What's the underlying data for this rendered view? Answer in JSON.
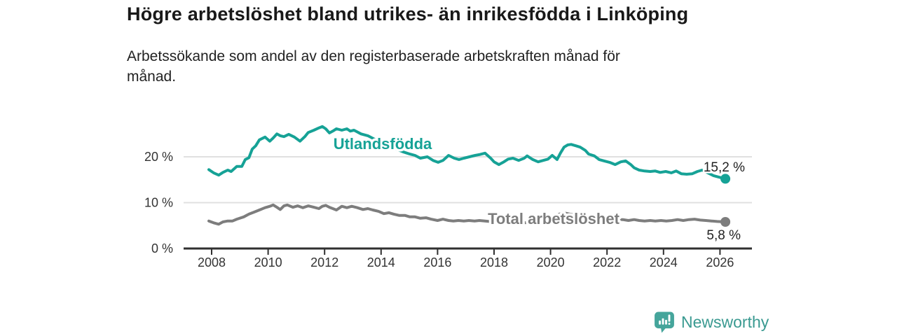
{
  "header": {
    "title": "Högre arbetslöshet bland utrikes- än inrikesfödda i Linköping",
    "subtitle": "Arbetssökande som andel av den registerbaserade arbetskraften månad för\nmånad."
  },
  "brand": {
    "name": "Newsworthy",
    "icon": "speech-bubble-bar-chart-exclamation",
    "color": "#3a9a91"
  },
  "colors": {
    "accent_teal": "#16a296",
    "line_gray": "#7d7d7d",
    "axis": "#303030",
    "gridline": "#e0e0e0",
    "tick_label": "#333333",
    "value_label": "#222222"
  },
  "chart_data": {
    "type": "line",
    "title": "Högre arbetslöshet bland utrikes- än inrikesfödda i Linköping",
    "subtitle": "Arbetssökande som andel av den registerbaserade arbetskraften månad för månad.",
    "unit": "%",
    "grid": "horizontal-only",
    "legend_position": "inline-labels",
    "xlim": [
      2007.8,
      2026.4
    ],
    "ylim": [
      0,
      28
    ],
    "xticks": [
      2008,
      2010,
      2012,
      2014,
      2016,
      2018,
      2020,
      2022,
      2024,
      2026
    ],
    "yticks": [
      {
        "v": 0,
        "label": "0 %"
      },
      {
        "v": 10,
        "label": "10 %"
      },
      {
        "v": 20,
        "label": "20 %"
      }
    ],
    "series": [
      {
        "name": "Utlandsfödda",
        "color": "#16a296",
        "end_label": "15,2 %",
        "end_value": 15.2,
        "points": [
          [
            2007.9,
            17.2
          ],
          [
            2008.07,
            16.5
          ],
          [
            2008.25,
            16.0
          ],
          [
            2008.4,
            16.6
          ],
          [
            2008.57,
            17.1
          ],
          [
            2008.69,
            16.8
          ],
          [
            2008.89,
            17.9
          ],
          [
            2009.07,
            17.9
          ],
          [
            2009.19,
            19.4
          ],
          [
            2009.32,
            19.8
          ],
          [
            2009.44,
            21.7
          ],
          [
            2009.56,
            22.4
          ],
          [
            2009.69,
            23.7
          ],
          [
            2009.89,
            24.3
          ],
          [
            2010.06,
            23.4
          ],
          [
            2010.18,
            24.1
          ],
          [
            2010.31,
            25.0
          ],
          [
            2010.43,
            24.6
          ],
          [
            2010.56,
            24.4
          ],
          [
            2010.73,
            24.9
          ],
          [
            2010.93,
            24.3
          ],
          [
            2011.13,
            23.4
          ],
          [
            2011.3,
            24.4
          ],
          [
            2011.42,
            25.3
          ],
          [
            2011.62,
            25.8
          ],
          [
            2011.8,
            26.3
          ],
          [
            2011.92,
            26.6
          ],
          [
            2012.04,
            26.1
          ],
          [
            2012.17,
            25.2
          ],
          [
            2012.29,
            25.6
          ],
          [
            2012.42,
            26.1
          ],
          [
            2012.61,
            25.8
          ],
          [
            2012.79,
            26.1
          ],
          [
            2012.91,
            25.6
          ],
          [
            2013.04,
            25.8
          ],
          [
            2013.29,
            25.0
          ],
          [
            2013.53,
            24.6
          ],
          [
            2013.78,
            23.8
          ],
          [
            2014.03,
            23.0
          ],
          [
            2014.28,
            22.3
          ],
          [
            2014.53,
            21.7
          ],
          [
            2014.77,
            21.1
          ],
          [
            2015.02,
            20.6
          ],
          [
            2015.2,
            20.3
          ],
          [
            2015.39,
            19.7
          ],
          [
            2015.64,
            20.0
          ],
          [
            2015.84,
            19.2
          ],
          [
            2016.02,
            18.8
          ],
          [
            2016.19,
            19.2
          ],
          [
            2016.39,
            20.3
          ],
          [
            2016.59,
            19.7
          ],
          [
            2016.76,
            19.4
          ],
          [
            2016.93,
            19.7
          ],
          [
            2017.13,
            20.0
          ],
          [
            2017.33,
            20.3
          ],
          [
            2017.5,
            20.5
          ],
          [
            2017.68,
            20.8
          ],
          [
            2017.88,
            19.7
          ],
          [
            2018.0,
            18.9
          ],
          [
            2018.17,
            18.3
          ],
          [
            2018.32,
            18.8
          ],
          [
            2018.5,
            19.5
          ],
          [
            2018.67,
            19.7
          ],
          [
            2018.87,
            19.2
          ],
          [
            2019.07,
            19.7
          ],
          [
            2019.17,
            20.2
          ],
          [
            2019.37,
            19.4
          ],
          [
            2019.56,
            18.9
          ],
          [
            2019.74,
            19.2
          ],
          [
            2019.91,
            19.5
          ],
          [
            2020.06,
            20.3
          ],
          [
            2020.23,
            19.4
          ],
          [
            2020.36,
            20.9
          ],
          [
            2020.48,
            22.1
          ],
          [
            2020.61,
            22.6
          ],
          [
            2020.73,
            22.7
          ],
          [
            2020.9,
            22.4
          ],
          [
            2021.05,
            22.1
          ],
          [
            2021.23,
            21.4
          ],
          [
            2021.35,
            20.6
          ],
          [
            2021.55,
            20.2
          ],
          [
            2021.72,
            19.4
          ],
          [
            2021.9,
            19.1
          ],
          [
            2022.09,
            18.8
          ],
          [
            2022.29,
            18.3
          ],
          [
            2022.49,
            18.9
          ],
          [
            2022.66,
            19.1
          ],
          [
            2022.84,
            18.3
          ],
          [
            2022.96,
            17.6
          ],
          [
            2023.14,
            17.1
          ],
          [
            2023.33,
            16.9
          ],
          [
            2023.53,
            16.8
          ],
          [
            2023.71,
            16.9
          ],
          [
            2023.88,
            16.6
          ],
          [
            2024.08,
            16.8
          ],
          [
            2024.28,
            16.5
          ],
          [
            2024.45,
            16.9
          ],
          [
            2024.63,
            16.3
          ],
          [
            2024.82,
            16.2
          ],
          [
            2025.02,
            16.3
          ],
          [
            2025.2,
            16.8
          ],
          [
            2025.37,
            17.1
          ],
          [
            2025.57,
            16.5
          ],
          [
            2025.77,
            15.9
          ],
          [
            2025.94,
            15.6
          ],
          [
            2026.19,
            15.2
          ]
        ]
      },
      {
        "name": "Total arbetslöshet",
        "color": "#7d7d7d",
        "end_label": "5,8 %",
        "end_value": 5.8,
        "points": [
          [
            2007.9,
            6.0
          ],
          [
            2008.07,
            5.6
          ],
          [
            2008.25,
            5.3
          ],
          [
            2008.4,
            5.8
          ],
          [
            2008.57,
            6.0
          ],
          [
            2008.74,
            6.0
          ],
          [
            2008.89,
            6.4
          ],
          [
            2009.14,
            6.9
          ],
          [
            2009.32,
            7.5
          ],
          [
            2009.49,
            7.9
          ],
          [
            2009.69,
            8.4
          ],
          [
            2009.89,
            8.9
          ],
          [
            2010.06,
            9.2
          ],
          [
            2010.18,
            9.5
          ],
          [
            2010.31,
            9.0
          ],
          [
            2010.43,
            8.5
          ],
          [
            2010.56,
            9.3
          ],
          [
            2010.68,
            9.5
          ],
          [
            2010.88,
            9.0
          ],
          [
            2011.05,
            9.3
          ],
          [
            2011.23,
            8.9
          ],
          [
            2011.42,
            9.3
          ],
          [
            2011.62,
            9.0
          ],
          [
            2011.8,
            8.7
          ],
          [
            2011.92,
            9.2
          ],
          [
            2012.04,
            9.4
          ],
          [
            2012.17,
            9.0
          ],
          [
            2012.42,
            8.4
          ],
          [
            2012.61,
            9.2
          ],
          [
            2012.79,
            8.9
          ],
          [
            2012.96,
            9.2
          ],
          [
            2013.16,
            8.9
          ],
          [
            2013.36,
            8.5
          ],
          [
            2013.53,
            8.7
          ],
          [
            2013.71,
            8.4
          ],
          [
            2013.91,
            8.1
          ],
          [
            2014.1,
            7.6
          ],
          [
            2014.28,
            7.8
          ],
          [
            2014.45,
            7.5
          ],
          [
            2014.65,
            7.2
          ],
          [
            2014.85,
            7.2
          ],
          [
            2015.02,
            6.9
          ],
          [
            2015.2,
            6.9
          ],
          [
            2015.39,
            6.6
          ],
          [
            2015.59,
            6.7
          ],
          [
            2015.77,
            6.4
          ],
          [
            2016.0,
            6.1
          ],
          [
            2016.19,
            6.4
          ],
          [
            2016.39,
            6.1
          ],
          [
            2016.56,
            6.0
          ],
          [
            2016.74,
            6.1
          ],
          [
            2016.93,
            6.0
          ],
          [
            2017.11,
            6.1
          ],
          [
            2017.31,
            6.0
          ],
          [
            2017.48,
            6.1
          ],
          [
            2017.68,
            6.0
          ],
          [
            2018.0,
            5.8
          ],
          [
            2018.5,
            5.7
          ],
          [
            2019.0,
            5.6
          ],
          [
            2019.5,
            5.7
          ],
          [
            2019.9,
            6.0
          ],
          [
            2020.2,
            7.2
          ],
          [
            2020.45,
            7.8
          ],
          [
            2020.7,
            7.5
          ],
          [
            2021.1,
            7.0
          ],
          [
            2021.5,
            6.6
          ],
          [
            2021.9,
            6.4
          ],
          [
            2022.3,
            6.3
          ],
          [
            2022.56,
            6.3
          ],
          [
            2022.76,
            6.1
          ],
          [
            2022.96,
            6.3
          ],
          [
            2023.14,
            6.1
          ],
          [
            2023.33,
            6.0
          ],
          [
            2023.53,
            6.1
          ],
          [
            2023.71,
            6.0
          ],
          [
            2023.91,
            6.1
          ],
          [
            2024.1,
            6.0
          ],
          [
            2024.3,
            6.1
          ],
          [
            2024.5,
            6.3
          ],
          [
            2024.7,
            6.1
          ],
          [
            2024.9,
            6.3
          ],
          [
            2025.1,
            6.4
          ],
          [
            2025.3,
            6.2
          ],
          [
            2025.5,
            6.1
          ],
          [
            2025.7,
            6.0
          ],
          [
            2025.9,
            5.9
          ],
          [
            2026.19,
            5.8
          ]
        ]
      }
    ]
  }
}
